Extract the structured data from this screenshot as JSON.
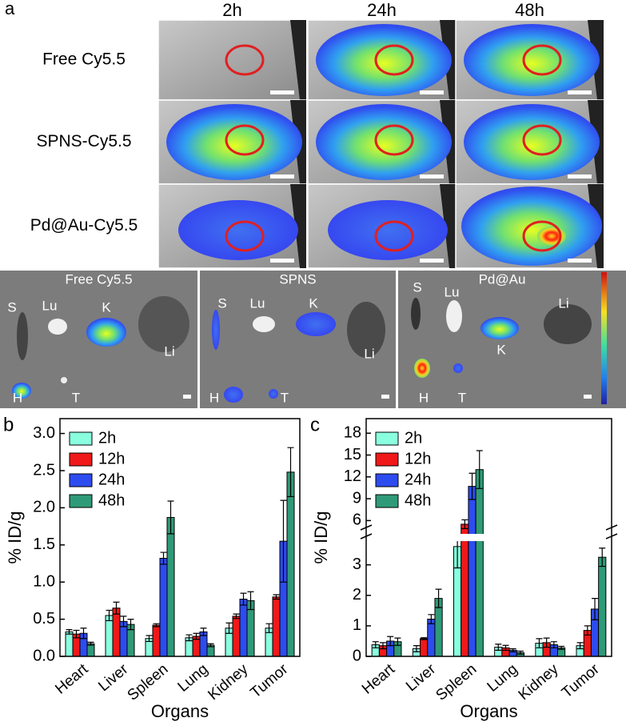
{
  "imaging": {
    "label": "a",
    "times": [
      "2h",
      "24h",
      "48h"
    ],
    "rows": [
      "Free Cy5.5",
      "SPNS-Cy5.5",
      "Pd@Au-Cy5.5"
    ],
    "organ_panels": [
      {
        "title": "Free Cy5.5",
        "organs": [
          "S",
          "Lu",
          "K",
          "Li",
          "H",
          "T"
        ]
      },
      {
        "title": "SPNS",
        "organs": [
          "S",
          "Lu",
          "K",
          "Li",
          "H",
          "T"
        ]
      },
      {
        "title": "Pd@Au",
        "organs": [
          "S",
          "Lu",
          "K",
          "Li",
          "H",
          "T"
        ]
      }
    ]
  },
  "chart_data": [
    {
      "type": "bar",
      "label": "b",
      "y_label": "% ID/g",
      "x_label": "Organs",
      "categories": [
        "Heart",
        "Liver",
        "Spleen",
        "Lung",
        "Kidney",
        "Tumor"
      ],
      "ylim": [
        0,
        3.2
      ],
      "yticks": [
        {
          "value": 0,
          "label": "0.0"
        },
        0.5,
        {
          "value": 1,
          "label": "1.0"
        },
        1.5,
        {
          "value": 2,
          "label": "2.0"
        },
        2.5,
        {
          "value": 3,
          "label": "3.0"
        }
      ],
      "series": [
        {
          "name": "2h",
          "color": "#8affe0",
          "values": [
            0.33,
            0.55,
            0.24,
            0.25,
            0.38,
            0.38
          ],
          "errors": [
            0.03,
            0.07,
            0.04,
            0.04,
            0.07,
            0.06
          ]
        },
        {
          "name": "12h",
          "color": "#f01818",
          "values": [
            0.3,
            0.65,
            0.42,
            0.27,
            0.54,
            0.8
          ],
          "errors": [
            0.05,
            0.08,
            0.02,
            0.04,
            0.03,
            0.03
          ]
        },
        {
          "name": "24h",
          "color": "#2d4cf0",
          "values": [
            0.31,
            0.47,
            1.32,
            0.33,
            0.77,
            1.55
          ],
          "errors": [
            0.07,
            0.07,
            0.08,
            0.05,
            0.08,
            0.55
          ]
        },
        {
          "name": "48h",
          "color": "#2f9a78",
          "values": [
            0.17,
            0.43,
            1.87,
            0.15,
            0.75,
            2.48
          ],
          "errors": [
            0.02,
            0.07,
            0.22,
            0.02,
            0.12,
            0.33
          ]
        }
      ]
    },
    {
      "type": "bar",
      "label": "c",
      "y_label": "% ID/g",
      "x_label": "Organs",
      "categories": [
        "Heart",
        "Liver",
        "Spleen",
        "Lung",
        "Kidney",
        "Tumor"
      ],
      "ylim": [
        0,
        20
      ],
      "y_break": [
        3.7,
        4.5
      ],
      "yticks": [
        0,
        1,
        2,
        3,
        6,
        9,
        12,
        15,
        18
      ],
      "series": [
        {
          "name": "2h",
          "color": "#8affe0",
          "values": [
            0.38,
            0.25,
            3.6,
            0.3,
            0.43,
            0.35
          ],
          "errors": [
            0.1,
            0.1,
            0.7,
            0.1,
            0.15,
            0.1
          ]
        },
        {
          "name": "12h",
          "color": "#f01818",
          "values": [
            0.35,
            0.58,
            5.5,
            0.28,
            0.45,
            0.85
          ],
          "errors": [
            0.1,
            0.03,
            0.6,
            0.08,
            0.15,
            0.15
          ]
        },
        {
          "name": "24h",
          "color": "#2d4cf0",
          "values": [
            0.5,
            1.22,
            10.7,
            0.2,
            0.38,
            1.55
          ],
          "errors": [
            0.15,
            0.15,
            1.8,
            0.05,
            0.1,
            0.35
          ]
        },
        {
          "name": "48h",
          "color": "#2f9a78",
          "values": [
            0.48,
            1.9,
            13.0,
            0.12,
            0.28,
            3.25
          ],
          "errors": [
            0.12,
            0.3,
            2.6,
            0.05,
            0.05,
            0.3
          ]
        }
      ]
    }
  ]
}
